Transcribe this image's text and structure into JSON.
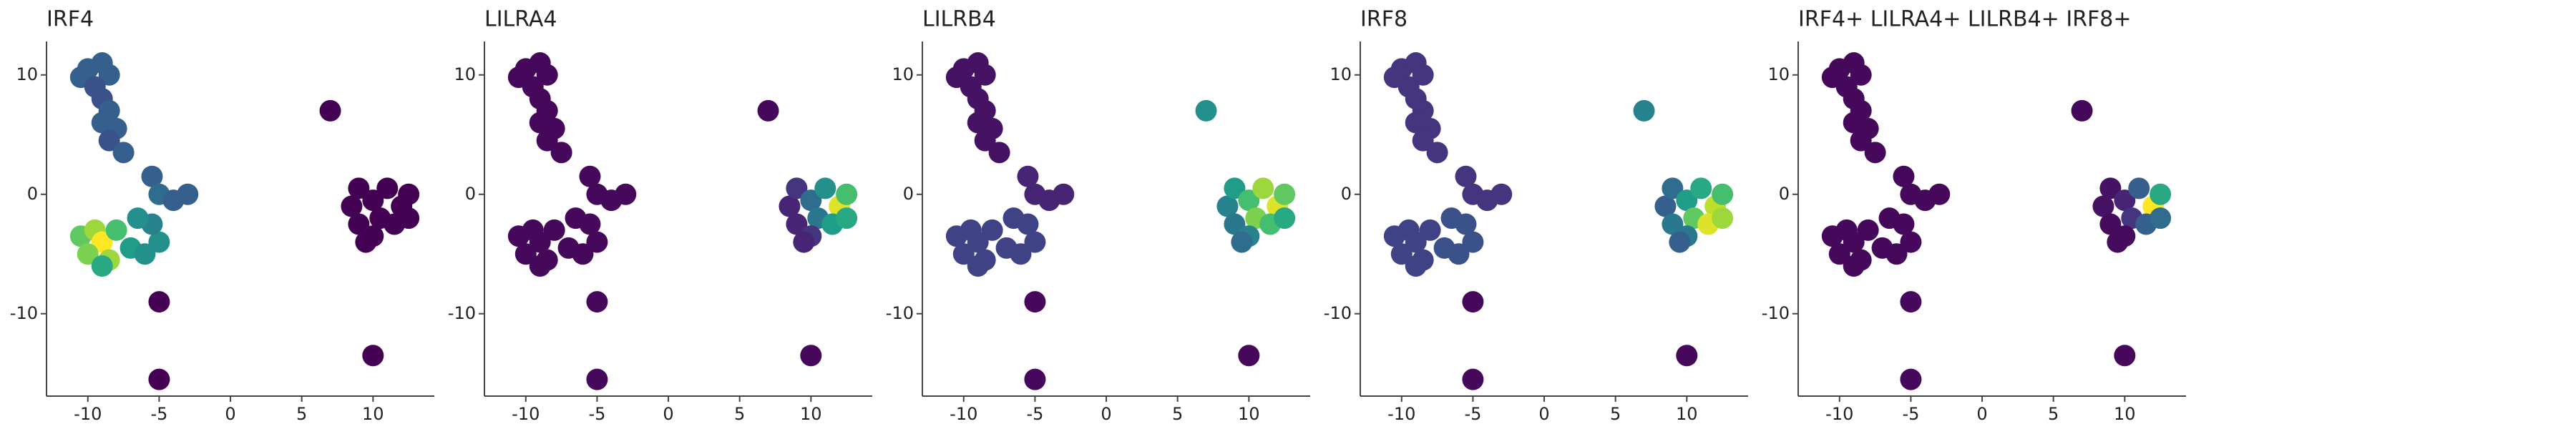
{
  "chart_data": [
    {
      "type": "scatter",
      "title": "IRF4",
      "colormap": "viridis",
      "clim": [
        0,
        1
      ],
      "x": [
        -10,
        -9,
        -8.5,
        -10.5,
        -9.5,
        -9,
        -8.5,
        -9,
        -8,
        -8.5,
        -7.5,
        -5.5,
        -5,
        -4,
        -3,
        -10.5,
        -9.5,
        -9,
        -10,
        -8.5,
        -8,
        -9,
        -7,
        -6,
        -5,
        -5.5,
        -6.5,
        8.5,
        9,
        10,
        11,
        12,
        12.5,
        9,
        10.5,
        11.5,
        10,
        12.5,
        9.5,
        7,
        -5,
        -5,
        10
      ],
      "y": [
        10.5,
        11,
        10,
        9.8,
        9,
        8,
        7,
        6,
        5.5,
        4.5,
        3.5,
        1.5,
        0,
        -0.5,
        0,
        -3.5,
        -3,
        -4,
        -5,
        -5.5,
        -3,
        -6,
        -4.5,
        -5,
        -4,
        -2.5,
        -2,
        -1,
        0.5,
        -0.5,
        0.5,
        -1,
        0,
        -2.5,
        -2,
        -2.5,
        -3.5,
        -2,
        -4,
        7,
        -9,
        -15.5,
        -13.5
      ],
      "values": [
        0.3,
        0.3,
        0.3,
        0.3,
        0.25,
        0.25,
        0.3,
        0.3,
        0.3,
        0.25,
        0.3,
        0.3,
        0.35,
        0.3,
        0.3,
        0.75,
        0.85,
        1.0,
        0.8,
        0.85,
        0.7,
        0.6,
        0.55,
        0.5,
        0.5,
        0.45,
        0.5,
        0,
        0,
        0,
        0,
        0,
        0,
        0,
        0,
        0,
        0,
        0,
        0,
        0,
        0,
        0,
        0
      ],
      "xlim": [
        -12.9,
        14.3
      ],
      "ylim": [
        -16.9,
        12.8
      ],
      "xticks": [
        -10,
        -5,
        0,
        5,
        10
      ],
      "yticks": [
        -10,
        0,
        10
      ]
    },
    {
      "type": "scatter",
      "title": "LILRA4",
      "colormap": "viridis",
      "clim": [
        0,
        1
      ],
      "x": [
        -10,
        -9,
        -8.5,
        -10.5,
        -9.5,
        -9,
        -8.5,
        -9,
        -8,
        -8.5,
        -7.5,
        -5.5,
        -5,
        -4,
        -3,
        -10.5,
        -9.5,
        -9,
        -10,
        -8.5,
        -8,
        -9,
        -7,
        -6,
        -5,
        -5.5,
        -6.5,
        8.5,
        9,
        10,
        11,
        12,
        12.5,
        9,
        10.5,
        11.5,
        10,
        12.5,
        9.5,
        7,
        -5,
        -5,
        10
      ],
      "y": [
        10.5,
        11,
        10,
        9.8,
        9,
        8,
        7,
        6,
        5.5,
        4.5,
        3.5,
        1.5,
        0,
        -0.5,
        0,
        -3.5,
        -3,
        -4,
        -5,
        -5.5,
        -3,
        -6,
        -4.5,
        -5,
        -4,
        -2.5,
        -2,
        -1,
        0.5,
        -0.5,
        0.5,
        -1,
        0,
        -2.5,
        -2,
        -2.5,
        -3.5,
        -2,
        -4,
        7,
        -9,
        -15.5,
        -13.5
      ],
      "values": [
        0.02,
        0.02,
        0.02,
        0.02,
        0.02,
        0.02,
        0.02,
        0.02,
        0.02,
        0.02,
        0.02,
        0.02,
        0.02,
        0.02,
        0.02,
        0.02,
        0.02,
        0.02,
        0.02,
        0.02,
        0.02,
        0.02,
        0.02,
        0.02,
        0.02,
        0.02,
        0.02,
        0.1,
        0.15,
        0.35,
        0.5,
        0.95,
        0.7,
        0.1,
        0.4,
        0.55,
        0.15,
        0.6,
        0.1,
        0.02,
        0.02,
        0.02,
        0.02
      ],
      "xlim": [
        -12.9,
        14.3
      ],
      "ylim": [
        -16.9,
        12.8
      ],
      "xticks": [
        -10,
        -5,
        0,
        5,
        10
      ],
      "yticks": [
        -10,
        0,
        10
      ]
    },
    {
      "type": "scatter",
      "title": "LILRB4",
      "colormap": "viridis",
      "clim": [
        0,
        1
      ],
      "x": [
        -10,
        -9,
        -8.5,
        -10.5,
        -9.5,
        -9,
        -8.5,
        -9,
        -8,
        -8.5,
        -7.5,
        -5.5,
        -5,
        -4,
        -3,
        -10.5,
        -9.5,
        -9,
        -10,
        -8.5,
        -8,
        -9,
        -7,
        -6,
        -5,
        -5.5,
        -6.5,
        8.5,
        9,
        10,
        11,
        12,
        12.5,
        9,
        10.5,
        11.5,
        10,
        12.5,
        9.5,
        7,
        -5,
        -5,
        10
      ],
      "y": [
        10.5,
        11,
        10,
        9.8,
        9,
        8,
        7,
        6,
        5.5,
        4.5,
        3.5,
        1.5,
        0,
        -0.5,
        0,
        -3.5,
        -3,
        -4,
        -5,
        -5.5,
        -3,
        -6,
        -4.5,
        -5,
        -4,
        -2.5,
        -2,
        -1,
        0.5,
        -0.5,
        0.5,
        -1,
        0,
        -2.5,
        -2,
        -2.5,
        -3.5,
        -2,
        -4,
        7,
        -9,
        -15.5,
        -13.5
      ],
      "values": [
        0.05,
        0.05,
        0.05,
        0.05,
        0.05,
        0.05,
        0.05,
        0.05,
        0.05,
        0.05,
        0.05,
        0.1,
        0.1,
        0.1,
        0.1,
        0.2,
        0.2,
        0.2,
        0.2,
        0.2,
        0.2,
        0.2,
        0.2,
        0.2,
        0.2,
        0.2,
        0.2,
        0.45,
        0.55,
        0.7,
        0.85,
        0.95,
        0.75,
        0.4,
        0.8,
        0.7,
        0.45,
        0.6,
        0.35,
        0.5,
        0.02,
        0.02,
        0.02
      ],
      "xlim": [
        -12.9,
        14.3
      ],
      "ylim": [
        -16.9,
        12.8
      ],
      "xticks": [
        -10,
        -5,
        0,
        5,
        10
      ],
      "yticks": [
        -10,
        0,
        10
      ]
    },
    {
      "type": "scatter",
      "title": "IRF8",
      "colormap": "viridis",
      "clim": [
        0,
        1
      ],
      "x": [
        -10,
        -9,
        -8.5,
        -10.5,
        -9.5,
        -9,
        -8.5,
        -9,
        -8,
        -8.5,
        -7.5,
        -5.5,
        -5,
        -4,
        -3,
        -10.5,
        -9.5,
        -9,
        -10,
        -8.5,
        -8,
        -9,
        -7,
        -6,
        -5,
        -5.5,
        -6.5,
        8.5,
        9,
        10,
        11,
        12,
        12.5,
        9,
        10.5,
        11.5,
        10,
        12.5,
        9.5,
        7,
        -5,
        -5,
        10
      ],
      "y": [
        10.5,
        11,
        10,
        9.8,
        9,
        8,
        7,
        6,
        5.5,
        4.5,
        3.5,
        1.5,
        0,
        -0.5,
        0,
        -3.5,
        -3,
        -4,
        -5,
        -5.5,
        -3,
        -6,
        -4.5,
        -5,
        -4,
        -2.5,
        -2,
        -1,
        0.5,
        -0.5,
        0.5,
        -1,
        0,
        -2.5,
        -2,
        -2.5,
        -3.5,
        -2,
        -4,
        7,
        -9,
        -15.5,
        -13.5
      ],
      "values": [
        0.15,
        0.15,
        0.15,
        0.15,
        0.15,
        0.15,
        0.15,
        0.15,
        0.15,
        0.15,
        0.15,
        0.15,
        0.15,
        0.15,
        0.15,
        0.2,
        0.2,
        0.2,
        0.2,
        0.2,
        0.2,
        0.2,
        0.25,
        0.25,
        0.25,
        0.25,
        0.25,
        0.3,
        0.35,
        0.55,
        0.6,
        0.9,
        0.7,
        0.4,
        0.75,
        0.95,
        0.4,
        0.85,
        0.3,
        0.45,
        0.02,
        0.02,
        0.02
      ],
      "xlim": [
        -12.9,
        14.3
      ],
      "ylim": [
        -16.9,
        12.8
      ],
      "xticks": [
        -10,
        -5,
        0,
        5,
        10
      ],
      "yticks": [
        -10,
        0,
        10
      ]
    },
    {
      "type": "scatter",
      "title": "IRF4+ LILRA4+ LILRB4+ IRF8+",
      "colormap": "viridis",
      "clim": [
        0,
        1
      ],
      "x": [
        -10,
        -9,
        -8.5,
        -10.5,
        -9.5,
        -9,
        -8.5,
        -9,
        -8,
        -8.5,
        -7.5,
        -5.5,
        -5,
        -4,
        -3,
        -10.5,
        -9.5,
        -9,
        -10,
        -8.5,
        -8,
        -9,
        -7,
        -6,
        -5,
        -5.5,
        -6.5,
        8.5,
        9,
        10,
        11,
        12,
        12.5,
        9,
        10.5,
        11.5,
        10,
        12.5,
        9.5,
        7,
        -5,
        -5,
        10
      ],
      "y": [
        10.5,
        11,
        10,
        9.8,
        9,
        8,
        7,
        6,
        5.5,
        4.5,
        3.5,
        1.5,
        0,
        -0.5,
        0,
        -3.5,
        -3,
        -4,
        -5,
        -5.5,
        -3,
        -6,
        -4.5,
        -5,
        -4,
        -2.5,
        -2,
        -1,
        0.5,
        -0.5,
        0.5,
        -1,
        0,
        -2.5,
        -2,
        -2.5,
        -3.5,
        -2,
        -4,
        7,
        -9,
        -15.5,
        -13.5
      ],
      "values": [
        0.02,
        0.02,
        0.02,
        0.02,
        0.02,
        0.02,
        0.02,
        0.02,
        0.02,
        0.02,
        0.02,
        0.02,
        0.02,
        0.02,
        0.02,
        0.02,
        0.02,
        0.02,
        0.02,
        0.02,
        0.02,
        0.02,
        0.02,
        0.02,
        0.02,
        0.02,
        0.02,
        0.05,
        0.05,
        0.1,
        0.3,
        1.0,
        0.6,
        0.03,
        0.15,
        0.3,
        0.03,
        0.35,
        0.03,
        0.02,
        0.02,
        0.02,
        0.02
      ],
      "xlim": [
        -12.9,
        14.3
      ],
      "ylim": [
        -16.9,
        12.8
      ],
      "xticks": [
        -10,
        -5,
        0,
        5,
        10
      ],
      "yticks": [
        -10,
        0,
        10
      ]
    }
  ]
}
